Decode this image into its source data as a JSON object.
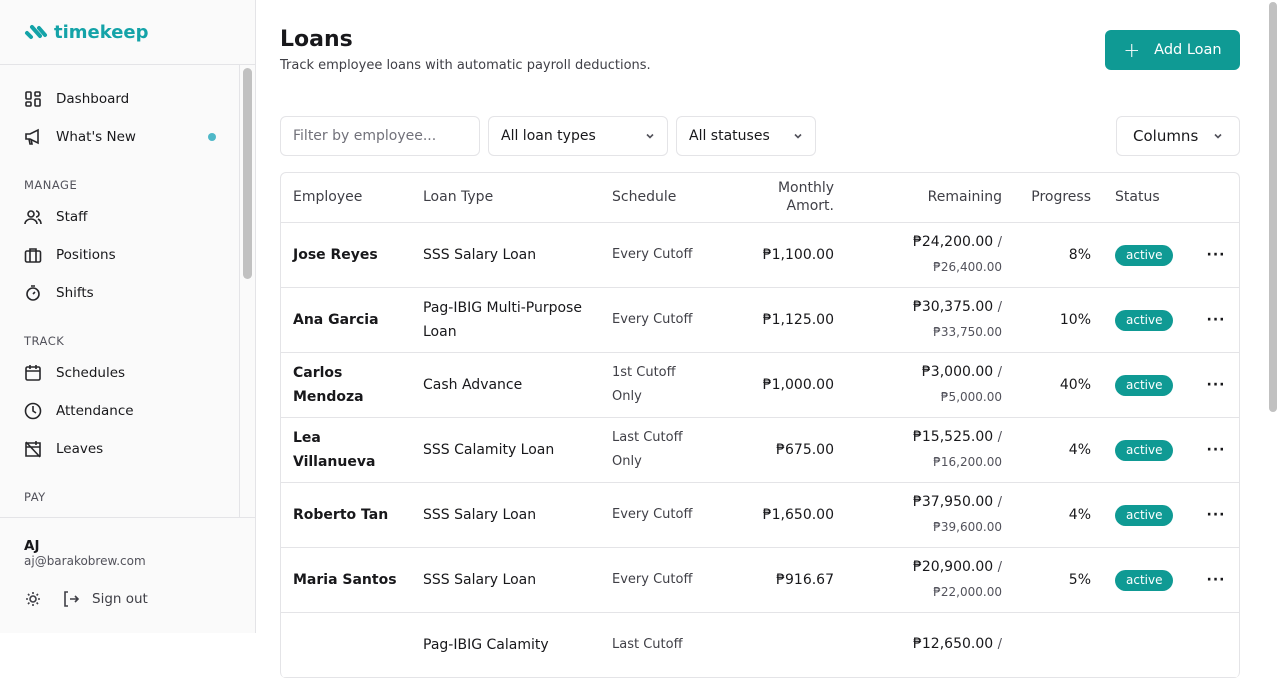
{
  "app": {
    "name": "timekeep",
    "accent": "#0f9a94"
  },
  "sidebar": {
    "top": [
      {
        "label": "Dashboard",
        "icon": "dashboard-icon"
      },
      {
        "label": "What's New",
        "icon": "megaphone-icon",
        "has_dot": true
      }
    ],
    "sections": [
      {
        "title": "MANAGE",
        "items": [
          {
            "label": "Staff",
            "icon": "users-icon"
          },
          {
            "label": "Positions",
            "icon": "briefcase-icon"
          },
          {
            "label": "Shifts",
            "icon": "stopwatch-icon"
          }
        ]
      },
      {
        "title": "TRACK",
        "items": [
          {
            "label": "Schedules",
            "icon": "calendar-icon"
          },
          {
            "label": "Attendance",
            "icon": "clock-icon"
          },
          {
            "label": "Leaves",
            "icon": "calendar-off-icon"
          }
        ]
      },
      {
        "title": "PAY",
        "items": []
      }
    ],
    "user": {
      "name": "AJ",
      "email": "aj@barakobrew.com",
      "sign_out": "Sign out"
    }
  },
  "page": {
    "title": "Loans",
    "subtitle": "Track employee loans with automatic payroll deductions.",
    "add_button": "Add Loan"
  },
  "filters": {
    "employee_placeholder": "Filter by employee...",
    "loan_type": "All loan types",
    "status": "All statuses",
    "columns": "Columns"
  },
  "table": {
    "headers": [
      "Employee",
      "Loan Type",
      "Schedule",
      "Monthly Amort.",
      "Remaining",
      "Progress",
      "Status"
    ],
    "rows": [
      {
        "employee": "Jose Reyes",
        "type": "SSS Salary Loan",
        "schedule": "Every Cutoff",
        "monthly": "₱1,100.00",
        "remaining": "₱24,200.00",
        "total": "₱26,400.00",
        "progress": "8%",
        "status": "active"
      },
      {
        "employee": "Ana Garcia",
        "type": "Pag-IBIG Multi-Purpose Loan",
        "schedule": "Every Cutoff",
        "monthly": "₱1,125.00",
        "remaining": "₱30,375.00",
        "total": "₱33,750.00",
        "progress": "10%",
        "status": "active"
      },
      {
        "employee": "Carlos Mendoza",
        "type": "Cash Advance",
        "schedule": "1st Cutoff Only",
        "monthly": "₱1,000.00",
        "remaining": "₱3,000.00",
        "total": "₱5,000.00",
        "progress": "40%",
        "status": "active"
      },
      {
        "employee": "Lea Villanueva",
        "type": "SSS Calamity Loan",
        "schedule": "Last Cutoff Only",
        "monthly": "₱675.00",
        "remaining": "₱15,525.00",
        "total": "₱16,200.00",
        "progress": "4%",
        "status": "active"
      },
      {
        "employee": "Roberto Tan",
        "type": "SSS Salary Loan",
        "schedule": "Every Cutoff",
        "monthly": "₱1,650.00",
        "remaining": "₱37,950.00",
        "total": "₱39,600.00",
        "progress": "4%",
        "status": "active"
      },
      {
        "employee": "Maria Santos",
        "type": "SSS Salary Loan",
        "schedule": "Every Cutoff",
        "monthly": "₱916.67",
        "remaining": "₱20,900.00",
        "total": "₱22,000.00",
        "progress": "5%",
        "status": "active"
      },
      {
        "employee": "",
        "type": "Pag-IBIG Calamity",
        "schedule": "Last Cutoff",
        "monthly": "",
        "remaining": "₱12,650.00",
        "total": "",
        "progress": "",
        "status": ""
      }
    ]
  }
}
